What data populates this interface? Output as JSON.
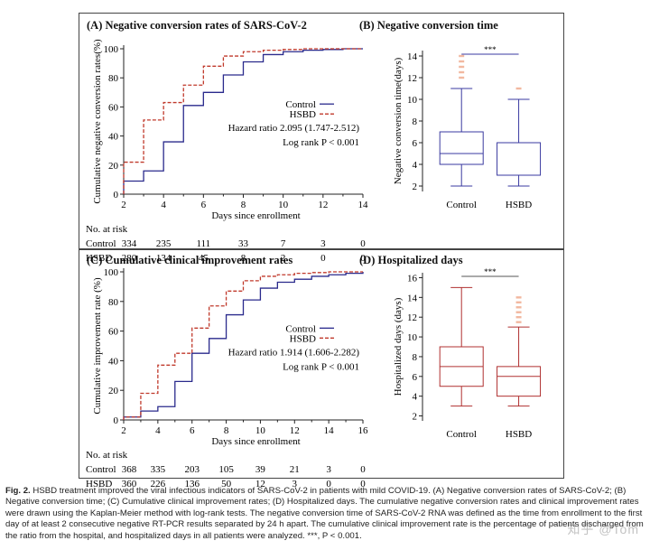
{
  "panels": {
    "A": {
      "title": "(A) Negative conversion rates of SARS-CoV-2",
      "ylabel": "Cumulative negative conversion rates(%)",
      "xlabel": "Days since enrollment",
      "legend": [
        "Control",
        "HSBD"
      ],
      "stats": [
        "Hazard ratio 2.095 (1.747-2.512)",
        "Log rank P < 0.001"
      ],
      "xticks": [
        "2",
        "4",
        "6",
        "8",
        "10",
        "12",
        "14"
      ],
      "yticks": [
        "0",
        "20",
        "40",
        "60",
        "80",
        "100"
      ],
      "risk_title": "No. at risk",
      "risk": [
        {
          "group": "Control",
          "values": [
            "334",
            "235",
            "111",
            "33",
            "7",
            "3",
            "0"
          ]
        },
        {
          "group": "HSBD",
          "values": [
            "280",
            "134",
            "45",
            "8",
            "2",
            "0",
            "0"
          ]
        }
      ]
    },
    "B": {
      "title": "(B) Negative conversion time",
      "ylabel": "Negative conversion time(days)",
      "yticks": [
        "2",
        "4",
        "6",
        "8",
        "10",
        "12",
        "14"
      ],
      "categories": [
        "Control",
        "HSBD"
      ],
      "sig": "***"
    },
    "C": {
      "title": "(C) Cumulative clinical improvement rates",
      "ylabel": "Cumulative improvement rate (%)",
      "xlabel": "Days since enrollment",
      "legend": [
        "Control",
        "HSBD"
      ],
      "stats": [
        "Hazard ratio 1.914 (1.606-2.282)",
        "Log rank P < 0.001"
      ],
      "xticks": [
        "2",
        "4",
        "6",
        "8",
        "10",
        "12",
        "14",
        "16"
      ],
      "yticks": [
        "0",
        "20",
        "40",
        "60",
        "80",
        "100"
      ],
      "risk_title": "No. at risk",
      "risk": [
        {
          "group": "Control",
          "values": [
            "368",
            "335",
            "203",
            "105",
            "39",
            "21",
            "3",
            "0"
          ]
        },
        {
          "group": "HSBD",
          "values": [
            "360",
            "226",
            "136",
            "50",
            "12",
            "3",
            "0",
            "0"
          ]
        }
      ]
    },
    "D": {
      "title": "(D) Hospitalized days",
      "ylabel": "Hospitalized days (days)",
      "yticks": [
        "2",
        "4",
        "6",
        "8",
        "10",
        "12",
        "14",
        "16"
      ],
      "categories": [
        "Control",
        "HSBD"
      ],
      "sig": "***"
    }
  },
  "caption": {
    "label": "Fig. 2.",
    "text": "HSBD treatment improved the viral infectious indicators of SARS-CoV-2 in patients with mild COVID-19. (A) Negative conversion rates of SARS-CoV-2; (B) Negative conversion time; (C) Cumulative clinical improvement rates; (D) Hospitalized days. The cumulative negative conversion rates and clinical improvement rates were drawn using the Kaplan-Meier method with log-rank tests. The negative conversion time of SARS-CoV-2 RNA was defined as the time from enrollment to the first day of at least 2 consecutive negative RT-PCR results separated by 24 h apart. The cumulative clinical improvement rate is the percentage of patients discharged from the ratio from the hospital, and hospitalized days in all patients were analyzed. ***, P < 0.001."
  },
  "watermark": "知乎 @Tom",
  "colors": {
    "control": "#2a2a8c",
    "hsbd": "#c0392b",
    "boxB": "#3a3aa0",
    "boxD": "#b03030",
    "outlier": "#f2b8a0"
  },
  "chart_data": [
    {
      "type": "line",
      "title": "(A) Negative conversion rates of SARS-CoV-2",
      "xlabel": "Days since enrollment",
      "ylabel": "Cumulative negative conversion rates(%)",
      "xlim": [
        2,
        14
      ],
      "ylim": [
        0,
        100
      ],
      "series": [
        {
          "name": "Control",
          "step": true,
          "x": [
            2,
            3,
            4,
            5,
            6,
            7,
            8,
            9,
            10,
            11,
            12,
            13,
            14
          ],
          "y": [
            9,
            16,
            36,
            61,
            70,
            82,
            91,
            96,
            98,
            99,
            99.5,
            100,
            100
          ]
        },
        {
          "name": "HSBD",
          "step": true,
          "x": [
            2,
            3,
            4,
            5,
            6,
            7,
            8,
            9,
            10,
            11,
            12,
            13,
            14
          ],
          "y": [
            22,
            51,
            63,
            75,
            88,
            95,
            98,
            99,
            99.5,
            100,
            100,
            100,
            100
          ]
        }
      ]
    },
    {
      "type": "box",
      "title": "(B) Negative conversion time",
      "ylabel": "Negative conversion time(days)",
      "ylim": [
        1.5,
        14.5
      ],
      "categories": [
        "Control",
        "HSBD"
      ],
      "boxes": [
        {
          "min": 2,
          "q1": 4,
          "median": 5,
          "q3": 7,
          "max": 11,
          "outliers": [
            12,
            12.5,
            13,
            13.5,
            14
          ]
        },
        {
          "min": 2,
          "q1": 3,
          "median": 3,
          "q3": 6,
          "max": 10,
          "outliers": [
            11
          ]
        }
      ]
    },
    {
      "type": "line",
      "title": "(C) Cumulative clinical improvement rates",
      "xlabel": "Days since enrollment",
      "ylabel": "Cumulative improvement rate (%)",
      "xlim": [
        2,
        16
      ],
      "ylim": [
        0,
        100
      ],
      "series": [
        {
          "name": "Control",
          "step": true,
          "x": [
            2,
            3,
            4,
            5,
            6,
            7,
            8,
            9,
            10,
            11,
            12,
            13,
            14,
            15,
            16
          ],
          "y": [
            2,
            6,
            9,
            26,
            45,
            55,
            71,
            81,
            89,
            93,
            95,
            97,
            98,
            99,
            100
          ]
        },
        {
          "name": "HSBD",
          "step": true,
          "x": [
            2,
            3,
            4,
            5,
            6,
            7,
            8,
            9,
            10,
            11,
            12,
            13,
            14,
            15,
            16
          ],
          "y": [
            2,
            18,
            37,
            45,
            62,
            77,
            87,
            94,
            97,
            98,
            99,
            99.5,
            100,
            100,
            100
          ]
        }
      ]
    },
    {
      "type": "box",
      "title": "(D) Hospitalized days",
      "ylabel": "Hospitalized days (days)",
      "ylim": [
        1.5,
        16.5
      ],
      "categories": [
        "Control",
        "HSBD"
      ],
      "boxes": [
        {
          "min": 3,
          "q1": 5,
          "median": 7,
          "q3": 9,
          "max": 15,
          "outliers": []
        },
        {
          "min": 3,
          "q1": 4,
          "median": 6,
          "q3": 7,
          "max": 11,
          "outliers": [
            11.5,
            12,
            12.5,
            13,
            13.5,
            14
          ]
        }
      ]
    }
  ]
}
